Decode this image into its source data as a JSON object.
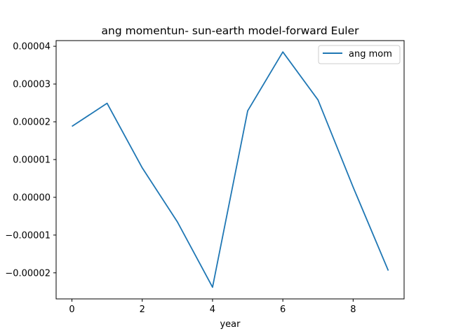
{
  "chart_data": {
    "type": "line",
    "title": "ang momentun- sun-earth model-forward Euler",
    "xlabel": "year",
    "ylabel": "",
    "x": [
      0,
      1,
      2,
      3,
      4,
      5,
      6,
      7,
      8,
      9
    ],
    "series": [
      {
        "name": "ang mom",
        "color": "#1f77b4",
        "values": [
          1.88e-05,
          2.49e-05,
          7.8e-06,
          -6.5e-06,
          -2.38e-05,
          2.29e-05,
          3.85e-05,
          2.58e-05,
          2.7e-06,
          -1.94e-05
        ]
      }
    ],
    "xlim": [
      -0.45,
      9.45
    ],
    "ylim": [
      -2.69e-05,
      4.15e-05
    ],
    "xticks": [
      0,
      2,
      4,
      6,
      8
    ],
    "xtick_labels": [
      "0",
      "2",
      "4",
      "6",
      "8"
    ],
    "yticks": [
      -2e-05,
      -1e-05,
      0,
      1e-05,
      2e-05,
      3e-05,
      4e-05
    ],
    "ytick_labels": [
      "−0.00002",
      "−0.00001",
      "0.00000",
      "0.00001",
      "0.00002",
      "0.00003",
      "0.00004"
    ],
    "grid": false,
    "legend_position": "upper right"
  }
}
